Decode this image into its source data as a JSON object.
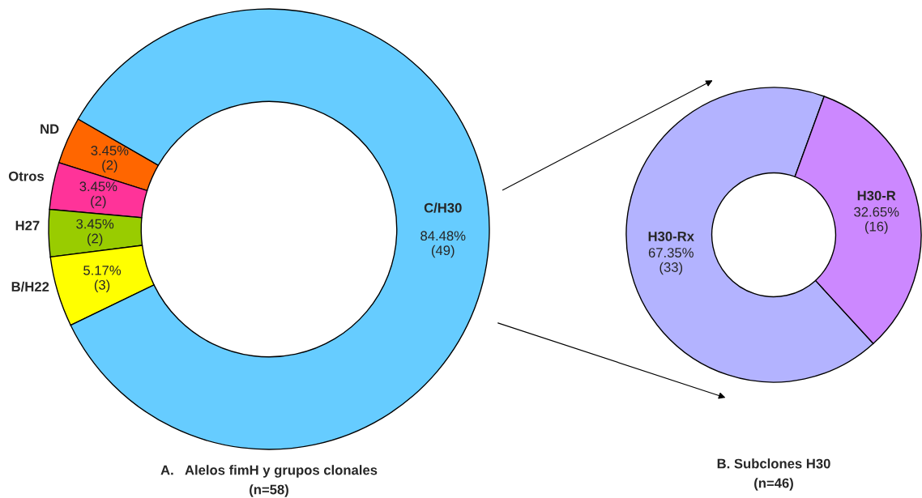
{
  "chart_data": [
    {
      "type": "donut",
      "title": "A.   Alelos fimH y grupos clonales",
      "subtitle": "(n=58)",
      "categories": [
        "ND",
        "Otros",
        "H27",
        "B/H22",
        "C/H30"
      ],
      "values": [
        3.45,
        3.45,
        3.45,
        5.17,
        84.48
      ],
      "colors": [
        "#ff6600",
        "#ff3399",
        "#99cc00",
        "#ffff00",
        "#66ccff"
      ],
      "value_labels": [
        "3.45%\n(2)",
        "3.45%\n(2)",
        "3.45%\n(2)",
        "5.17%\n(3)",
        "84.48%\n(49)"
      ],
      "legend": false
    },
    {
      "type": "donut",
      "title": "B. Subclones H30",
      "subtitle": "(n=46)",
      "categories": [
        "H30-Rx",
        "H30-R"
      ],
      "values": [
        67.35,
        32.65
      ],
      "colors": [
        "#b3b3ff",
        "#cc88ff"
      ],
      "value_labels": [
        "67.35%\n(33)",
        "32.65%\n(16)"
      ],
      "legend": false
    }
  ]
}
